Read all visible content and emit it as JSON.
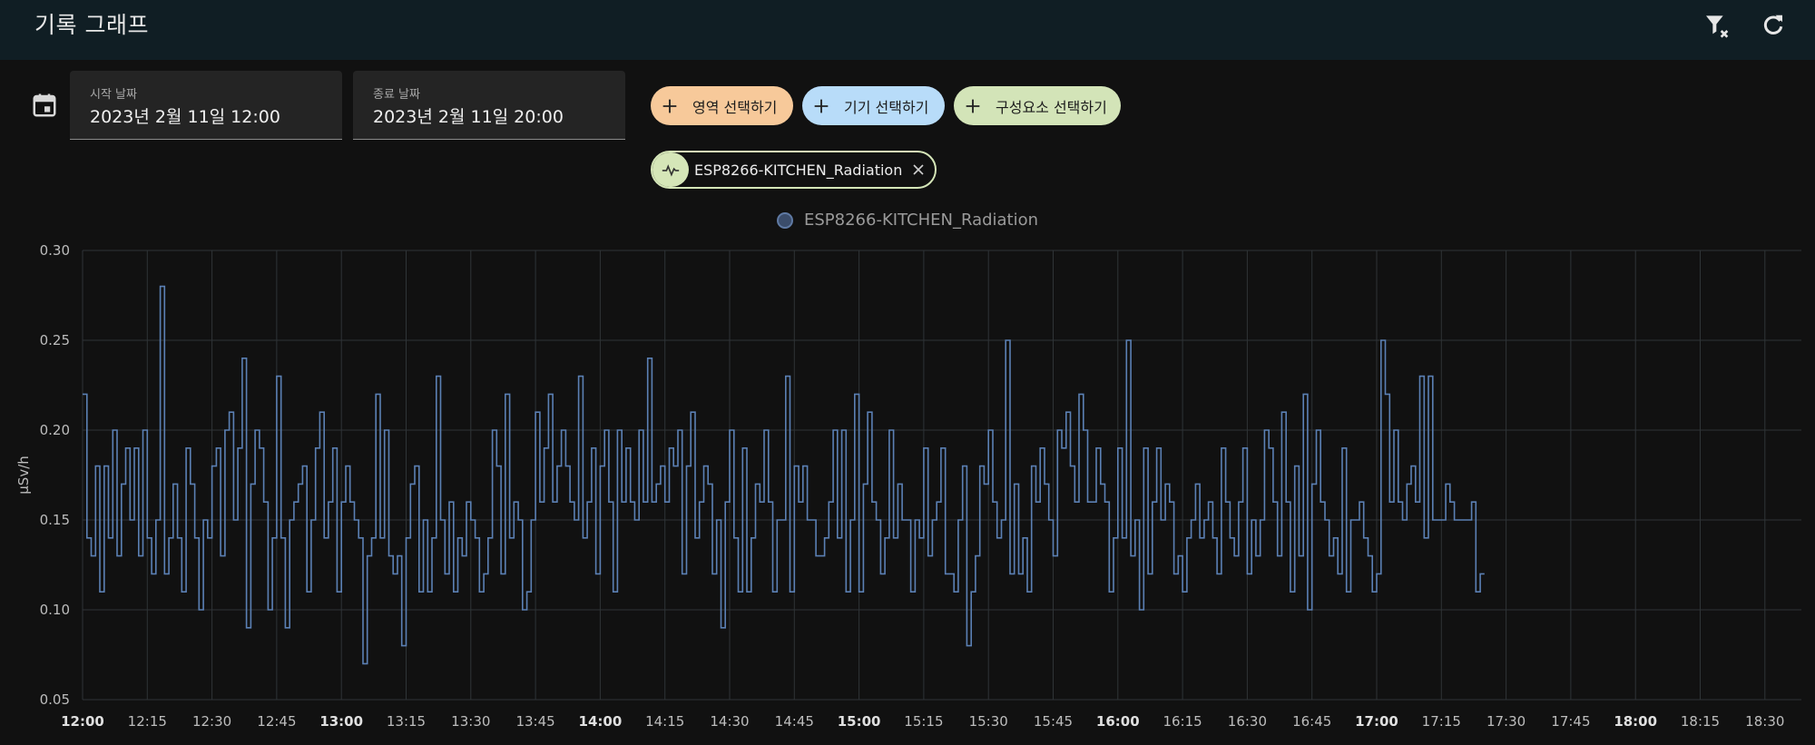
{
  "header": {
    "title": "기록 그래프",
    "icons": [
      "filter-remove-icon",
      "refresh-icon"
    ]
  },
  "date_range": {
    "icon": "calendar-icon",
    "start": {
      "label": "시작 날짜",
      "value": "2023년 2월 11일 12:00"
    },
    "end": {
      "label": "종료 날짜",
      "value": "2023년 2월 11일 20:00"
    }
  },
  "targets": {
    "buttons": [
      {
        "label": "영역 선택하기",
        "color": "#f7c99a",
        "icon": "plus-icon"
      },
      {
        "label": "기기 선택하기",
        "color": "#b8dcf9",
        "icon": "plus-icon"
      },
      {
        "label": "구성요소 선택하기",
        "color": "#d3e4b8",
        "icon": "plus-icon"
      }
    ],
    "selected": [
      {
        "label": "ESP8266-KITCHEN_Radiation",
        "icon": "sensor-pulse-icon",
        "close_icon": "close-icon"
      }
    ]
  },
  "colors": {
    "background": "#111111",
    "topbar": "#101e24",
    "series_line": "#5b80b4",
    "grid": "#2f3437"
  },
  "chart_data": {
    "type": "line",
    "step": true,
    "ylabel": "µSv/h",
    "ylim": [
      0.05,
      0.3
    ],
    "yticks": [
      "0.30",
      "0.25",
      "0.20",
      "0.15",
      "0.10",
      "0.05"
    ],
    "xlim": [
      "12:00",
      "18:36"
    ],
    "xticks": [
      {
        "label": "12:00",
        "bold": true
      },
      {
        "label": "12:15",
        "bold": false
      },
      {
        "label": "12:30",
        "bold": false
      },
      {
        "label": "12:45",
        "bold": false
      },
      {
        "label": "13:00",
        "bold": true
      },
      {
        "label": "13:15",
        "bold": false
      },
      {
        "label": "13:30",
        "bold": false
      },
      {
        "label": "13:45",
        "bold": false
      },
      {
        "label": "14:00",
        "bold": true
      },
      {
        "label": "14:15",
        "bold": false
      },
      {
        "label": "14:30",
        "bold": false
      },
      {
        "label": "14:45",
        "bold": false
      },
      {
        "label": "15:00",
        "bold": true
      },
      {
        "label": "15:15",
        "bold": false
      },
      {
        "label": "15:30",
        "bold": false
      },
      {
        "label": "15:45",
        "bold": false
      },
      {
        "label": "16:00",
        "bold": true
      },
      {
        "label": "16:15",
        "bold": false
      },
      {
        "label": "16:30",
        "bold": false
      },
      {
        "label": "16:45",
        "bold": false
      },
      {
        "label": "17:00",
        "bold": true
      },
      {
        "label": "17:15",
        "bold": false
      },
      {
        "label": "17:30",
        "bold": false
      },
      {
        "label": "17:45",
        "bold": false
      },
      {
        "label": "18:00",
        "bold": true
      },
      {
        "label": "18:15",
        "bold": false
      },
      {
        "label": "18:30",
        "bold": false
      }
    ],
    "grid": true,
    "legend": "top-center",
    "series": [
      {
        "name": "ESP8266-KITCHEN_Radiation",
        "sample_interval_seconds": 60,
        "start_time": "12:00",
        "values": [
          0.22,
          0.14,
          0.13,
          0.18,
          0.11,
          0.18,
          0.14,
          0.2,
          0.13,
          0.17,
          0.19,
          0.15,
          0.19,
          0.13,
          0.2,
          0.14,
          0.12,
          0.15,
          0.28,
          0.12,
          0.14,
          0.17,
          0.14,
          0.11,
          0.19,
          0.17,
          0.14,
          0.1,
          0.15,
          0.14,
          0.18,
          0.19,
          0.13,
          0.2,
          0.21,
          0.15,
          0.19,
          0.24,
          0.09,
          0.17,
          0.2,
          0.19,
          0.16,
          0.1,
          0.14,
          0.23,
          0.14,
          0.09,
          0.15,
          0.16,
          0.17,
          0.18,
          0.11,
          0.15,
          0.19,
          0.21,
          0.14,
          0.16,
          0.19,
          0.11,
          0.16,
          0.18,
          0.16,
          0.15,
          0.14,
          0.07,
          0.13,
          0.14,
          0.22,
          0.14,
          0.2,
          0.13,
          0.12,
          0.13,
          0.08,
          0.14,
          0.17,
          0.18,
          0.11,
          0.15,
          0.11,
          0.14,
          0.23,
          0.15,
          0.12,
          0.16,
          0.11,
          0.14,
          0.13,
          0.16,
          0.15,
          0.14,
          0.11,
          0.12,
          0.14,
          0.2,
          0.18,
          0.12,
          0.22,
          0.14,
          0.16,
          0.15,
          0.1,
          0.11,
          0.15,
          0.21,
          0.16,
          0.19,
          0.22,
          0.16,
          0.18,
          0.2,
          0.18,
          0.16,
          0.15,
          0.23,
          0.14,
          0.16,
          0.19,
          0.12,
          0.18,
          0.2,
          0.16,
          0.11,
          0.2,
          0.16,
          0.19,
          0.16,
          0.15,
          0.2,
          0.16,
          0.24,
          0.16,
          0.17,
          0.18,
          0.16,
          0.19,
          0.18,
          0.2,
          0.12,
          0.18,
          0.21,
          0.14,
          0.16,
          0.18,
          0.17,
          0.12,
          0.15,
          0.09,
          0.16,
          0.2,
          0.14,
          0.11,
          0.19,
          0.11,
          0.14,
          0.17,
          0.16,
          0.2,
          0.16,
          0.11,
          0.15,
          0.15,
          0.23,
          0.11,
          0.18,
          0.16,
          0.18,
          0.15,
          0.15,
          0.13,
          0.13,
          0.14,
          0.16,
          0.2,
          0.14,
          0.2,
          0.11,
          0.15,
          0.22,
          0.11,
          0.17,
          0.21,
          0.16,
          0.15,
          0.12,
          0.14,
          0.2,
          0.14,
          0.17,
          0.15,
          0.15,
          0.11,
          0.15,
          0.14,
          0.19,
          0.13,
          0.15,
          0.16,
          0.19,
          0.12,
          0.12,
          0.11,
          0.15,
          0.18,
          0.08,
          0.11,
          0.13,
          0.18,
          0.17,
          0.2,
          0.16,
          0.14,
          0.15,
          0.25,
          0.12,
          0.17,
          0.12,
          0.14,
          0.11,
          0.18,
          0.16,
          0.19,
          0.17,
          0.15,
          0.13,
          0.2,
          0.19,
          0.21,
          0.18,
          0.16,
          0.22,
          0.2,
          0.16,
          0.16,
          0.19,
          0.17,
          0.16,
          0.11,
          0.14,
          0.19,
          0.14,
          0.25,
          0.13,
          0.15,
          0.1,
          0.19,
          0.12,
          0.16,
          0.19,
          0.15,
          0.17,
          0.16,
          0.12,
          0.13,
          0.11,
          0.14,
          0.15,
          0.17,
          0.14,
          0.15,
          0.16,
          0.14,
          0.12,
          0.19,
          0.16,
          0.14,
          0.13,
          0.16,
          0.19,
          0.12,
          0.15,
          0.13,
          0.15,
          0.2,
          0.19,
          0.16,
          0.13,
          0.21,
          0.16,
          0.11,
          0.18,
          0.13,
          0.22,
          0.1,
          0.17,
          0.2,
          0.16,
          0.15,
          0.13,
          0.14,
          0.12,
          0.19,
          0.11,
          0.15,
          0.15,
          0.16,
          0.14,
          0.13,
          0.11,
          0.12,
          0.25,
          0.22,
          0.16,
          0.2,
          0.16,
          0.15,
          0.17,
          0.18,
          0.16,
          0.23,
          0.14,
          0.23,
          0.15,
          0.15,
          0.15,
          0.17,
          0.16,
          0.15,
          0.15,
          0.15,
          0.15,
          0.16,
          0.11,
          0.12
        ]
      }
    ]
  }
}
